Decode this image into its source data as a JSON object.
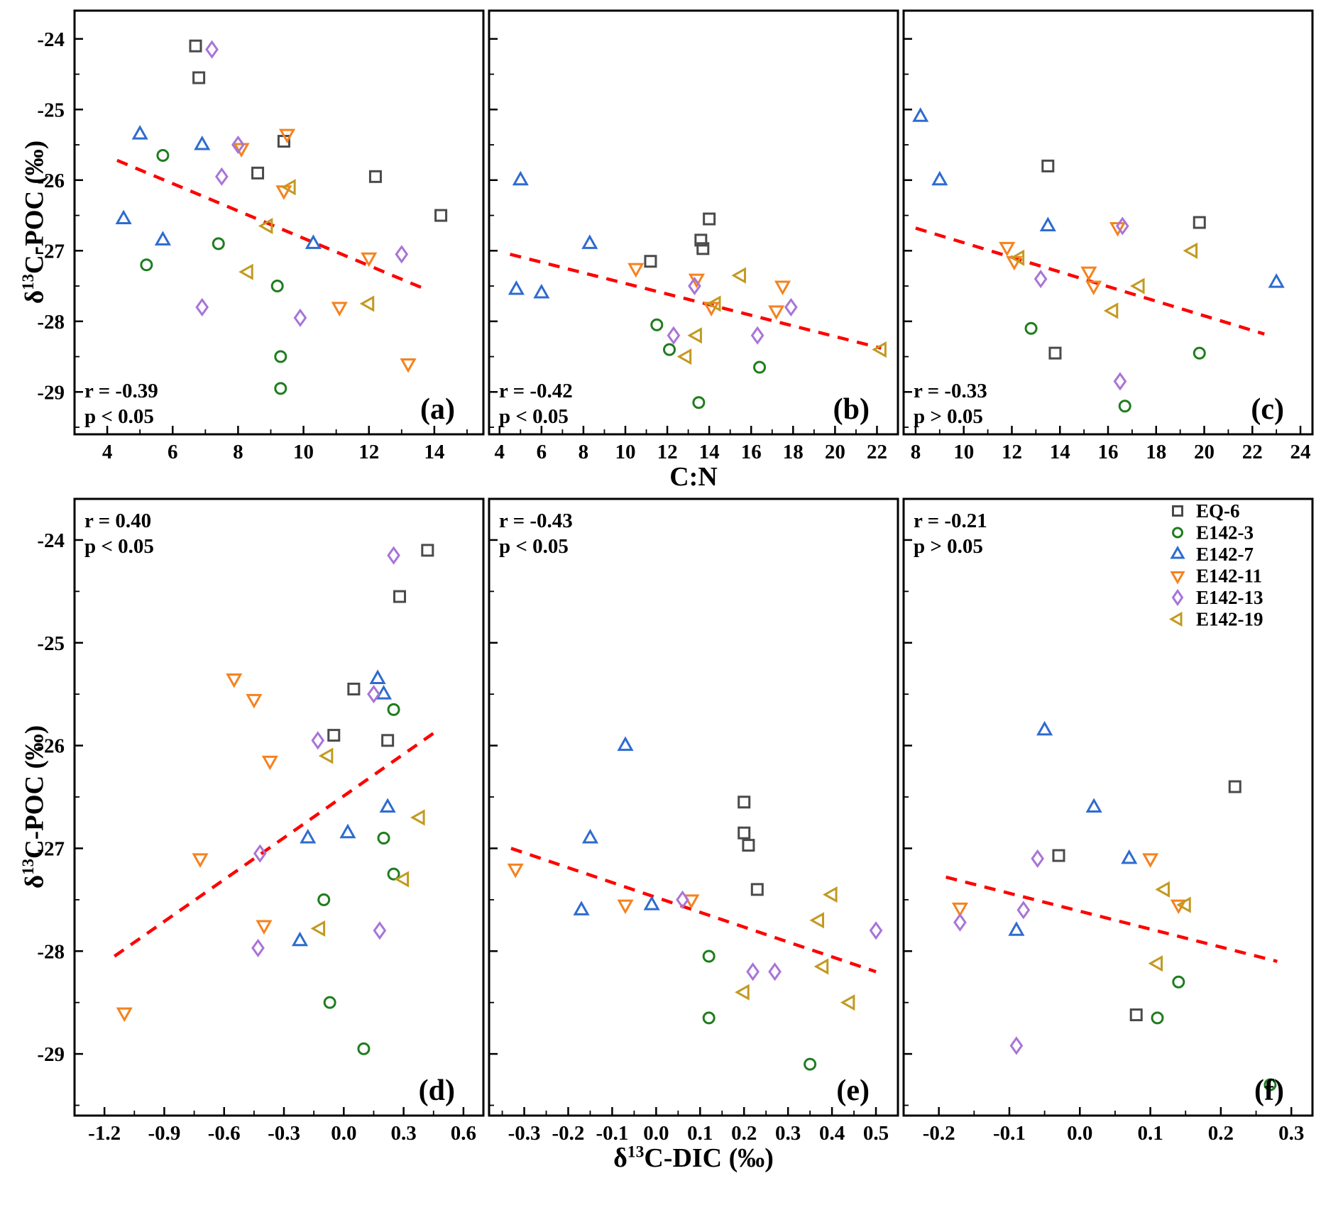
{
  "figure": {
    "background": "#ffffff",
    "axis_color": "#000000",
    "trend_color": "#ff0000"
  },
  "axes": {
    "y_label_prefix": "δ",
    "y_label_sup": "13",
    "y_label_rest": "C-POC (‰)",
    "x_label_top": "C:N",
    "x_label_bottom_prefix": "δ",
    "x_label_bottom_sup": "13",
    "x_label_bottom_rest": "C-DIC (‰)"
  },
  "series_defs": [
    {
      "key": "EQ-6",
      "label": "EQ-6",
      "color": "#4a4a4a",
      "marker": "square"
    },
    {
      "key": "E142-3",
      "label": "E142-3",
      "color": "#1e7d1e",
      "marker": "circle"
    },
    {
      "key": "E142-7",
      "label": "E142-7",
      "color": "#2e6bd0",
      "marker": "triangle-up"
    },
    {
      "key": "E142-11",
      "label": "E142-11",
      "color": "#f5821e",
      "marker": "triangle-down"
    },
    {
      "key": "E142-13",
      "label": "E142-13",
      "color": "#a874d8",
      "marker": "diamond"
    },
    {
      "key": "E142-19",
      "label": "E142-19",
      "color": "#c29a20",
      "marker": "triangle-left"
    }
  ],
  "chart_data": [
    {
      "id": "a",
      "panel_label": "(a)",
      "type": "scatter",
      "row": 0,
      "col": 0,
      "xlabel": "C:N",
      "ylabel": "δ13C-POC (‰)",
      "stats": {
        "r": "r = -0.39",
        "p": "p < 0.05",
        "corner": "bottom-left"
      },
      "xlim": [
        3,
        15.5
      ],
      "xticks": {
        "values": [
          4,
          6,
          8,
          10,
          12,
          14
        ],
        "labels": [
          "4",
          "6",
          "8",
          "10",
          "12",
          "14"
        ],
        "minor_step": 1
      },
      "ylim": [
        -29.6,
        -23.6
      ],
      "yticks": {
        "values": [
          -24,
          -25,
          -26,
          -27,
          -28,
          -29
        ],
        "labels": [
          "-24",
          "-25",
          "-26",
          "-27",
          "-28",
          "-29"
        ],
        "minor_step": 0.5
      },
      "trend": [
        [
          4.3,
          -25.72
        ],
        [
          13.6,
          -27.52
        ]
      ],
      "points": {
        "EQ-6": [
          [
            6.7,
            -24.1
          ],
          [
            6.8,
            -24.55
          ],
          [
            9.4,
            -25.45
          ],
          [
            8.6,
            -25.9
          ],
          [
            12.2,
            -25.95
          ],
          [
            14.2,
            -26.5
          ]
        ],
        "E142-3": [
          [
            5.7,
            -25.65
          ],
          [
            7.4,
            -26.9
          ],
          [
            5.2,
            -27.2
          ],
          [
            9.2,
            -27.5
          ],
          [
            9.3,
            -28.5
          ],
          [
            9.3,
            -28.95
          ]
        ],
        "E142-7": [
          [
            5.0,
            -25.35
          ],
          [
            6.9,
            -25.5
          ],
          [
            4.5,
            -26.55
          ],
          [
            5.7,
            -26.85
          ],
          [
            10.3,
            -26.9
          ]
        ],
        "E142-11": [
          [
            9.5,
            -25.35
          ],
          [
            8.1,
            -25.55
          ],
          [
            9.4,
            -26.15
          ],
          [
            12.0,
            -27.1
          ],
          [
            11.1,
            -27.8
          ],
          [
            13.2,
            -28.6
          ]
        ],
        "E142-13": [
          [
            7.2,
            -24.15
          ],
          [
            8.0,
            -25.5
          ],
          [
            7.5,
            -25.95
          ],
          [
            13.0,
            -27.05
          ],
          [
            6.9,
            -27.8
          ],
          [
            9.9,
            -27.95
          ]
        ],
        "E142-19": [
          [
            9.6,
            -26.1
          ],
          [
            8.9,
            -26.65
          ],
          [
            8.3,
            -27.3
          ],
          [
            12.0,
            -27.75
          ]
        ]
      }
    },
    {
      "id": "b",
      "panel_label": "(b)",
      "type": "scatter",
      "row": 0,
      "col": 1,
      "xlabel": "C:N",
      "ylabel": "δ13C-POC (‰)",
      "stats": {
        "r": "r = -0.42",
        "p": "p < 0.05",
        "corner": "bottom-left"
      },
      "xlim": [
        3.5,
        23
      ],
      "xticks": {
        "values": [
          4,
          6,
          8,
          10,
          12,
          14,
          16,
          18,
          20,
          22
        ],
        "labels": [
          "4",
          "6",
          "8",
          "10",
          "12",
          "14",
          "16",
          "18",
          "20",
          "22"
        ],
        "minor_step": 1
      },
      "ylim": [
        -29.6,
        -23.6
      ],
      "yticks": {
        "values": [
          -24,
          -25,
          -26,
          -27,
          -28,
          -29
        ],
        "labels": [
          "-24",
          "-25",
          "-26",
          "-27",
          "-28",
          "-29"
        ],
        "minor_step": 0.5
      },
      "trend": [
        [
          4.5,
          -27.05
        ],
        [
          22.2,
          -28.38
        ]
      ],
      "points": {
        "EQ-6": [
          [
            14.0,
            -26.55
          ],
          [
            13.6,
            -26.85
          ],
          [
            13.7,
            -26.97
          ],
          [
            11.2,
            -27.15
          ]
        ],
        "E142-3": [
          [
            11.5,
            -28.05
          ],
          [
            12.1,
            -28.4
          ],
          [
            16.4,
            -28.65
          ],
          [
            13.5,
            -29.15
          ]
        ],
        "E142-7": [
          [
            5.0,
            -26.0
          ],
          [
            8.3,
            -26.9
          ],
          [
            4.8,
            -27.55
          ],
          [
            6.0,
            -27.6
          ]
        ],
        "E142-11": [
          [
            10.5,
            -27.25
          ],
          [
            13.4,
            -27.4
          ],
          [
            14.1,
            -27.8
          ],
          [
            17.5,
            -27.5
          ],
          [
            17.2,
            -27.85
          ]
        ],
        "E142-13": [
          [
            13.3,
            -27.5
          ],
          [
            12.3,
            -28.2
          ],
          [
            16.3,
            -28.2
          ],
          [
            17.9,
            -27.8
          ]
        ],
        "E142-19": [
          [
            15.5,
            -27.35
          ],
          [
            14.3,
            -27.75
          ],
          [
            13.4,
            -28.2
          ],
          [
            12.9,
            -28.5
          ],
          [
            22.2,
            -28.4
          ]
        ]
      }
    },
    {
      "id": "c",
      "panel_label": "(c)",
      "type": "scatter",
      "row": 0,
      "col": 2,
      "xlabel": "C:N",
      "ylabel": "δ13C-POC (‰)",
      "stats": {
        "r": "r = -0.33",
        "p": "p > 0.05",
        "corner": "bottom-left"
      },
      "xlim": [
        7.5,
        24.5
      ],
      "xticks": {
        "values": [
          8,
          10,
          12,
          14,
          16,
          18,
          20,
          22,
          24
        ],
        "labels": [
          "8",
          "10",
          "12",
          "14",
          "16",
          "18",
          "20",
          "22",
          "24"
        ],
        "minor_step": 1
      },
      "ylim": [
        -29.6,
        -23.6
      ],
      "yticks": {
        "values": [
          -24,
          -25,
          -26,
          -27,
          -28,
          -29
        ],
        "labels": [
          "-24",
          "-25",
          "-26",
          "-27",
          "-28",
          "-29"
        ],
        "minor_step": 0.5
      },
      "trend": [
        [
          8.0,
          -26.68
        ],
        [
          22.5,
          -28.18
        ]
      ],
      "points": {
        "EQ-6": [
          [
            13.5,
            -25.8
          ],
          [
            19.8,
            -26.6
          ],
          [
            13.8,
            -28.45
          ]
        ],
        "E142-3": [
          [
            12.8,
            -28.1
          ],
          [
            19.8,
            -28.45
          ],
          [
            16.7,
            -29.2
          ]
        ],
        "E142-7": [
          [
            8.2,
            -25.1
          ],
          [
            9.0,
            -26.0
          ],
          [
            13.5,
            -26.65
          ],
          [
            23.0,
            -27.45
          ]
        ],
        "E142-11": [
          [
            11.8,
            -26.95
          ],
          [
            16.4,
            -26.67
          ],
          [
            12.1,
            -27.15
          ],
          [
            15.2,
            -27.3
          ],
          [
            15.4,
            -27.5
          ]
        ],
        "E142-13": [
          [
            16.6,
            -26.65
          ],
          [
            13.2,
            -27.4
          ],
          [
            16.5,
            -28.85
          ]
        ],
        "E142-19": [
          [
            12.3,
            -27.1
          ],
          [
            19.5,
            -27.0
          ],
          [
            17.3,
            -27.5
          ],
          [
            16.2,
            -27.85
          ]
        ]
      }
    },
    {
      "id": "d",
      "panel_label": "(d)",
      "type": "scatter",
      "row": 1,
      "col": 0,
      "xlabel": "δ13C-DIC (‰)",
      "ylabel": "δ13C-POC (‰)",
      "stats": {
        "r": "r = 0.40",
        "p": "p < 0.05",
        "corner": "top-left"
      },
      "xlim": [
        -1.35,
        0.7
      ],
      "xticks": {
        "values": [
          -1.2,
          -0.9,
          -0.6,
          -0.3,
          0.0,
          0.3,
          0.6
        ],
        "labels": [
          "-1.2",
          "-0.9",
          "-0.6",
          "-0.3",
          "0.0",
          "0.3",
          "0.6"
        ],
        "minor_step": 0.15
      },
      "ylim": [
        -29.6,
        -23.6
      ],
      "yticks": {
        "values": [
          -24,
          -25,
          -26,
          -27,
          -28,
          -29
        ],
        "labels": [
          "-24",
          "-25",
          "-26",
          "-27",
          "-28",
          "-29"
        ],
        "minor_step": 0.5
      },
      "trend": [
        [
          -1.15,
          -28.05
        ],
        [
          0.45,
          -25.88
        ]
      ],
      "points": {
        "EQ-6": [
          [
            0.42,
            -24.1
          ],
          [
            0.28,
            -24.55
          ],
          [
            0.05,
            -25.45
          ],
          [
            -0.05,
            -25.9
          ],
          [
            0.22,
            -25.95
          ]
        ],
        "E142-3": [
          [
            0.25,
            -25.65
          ],
          [
            0.2,
            -26.9
          ],
          [
            0.25,
            -27.25
          ],
          [
            -0.1,
            -27.5
          ],
          [
            -0.07,
            -28.5
          ],
          [
            0.1,
            -28.95
          ]
        ],
        "E142-7": [
          [
            0.17,
            -25.35
          ],
          [
            0.2,
            -25.5
          ],
          [
            0.22,
            -26.6
          ],
          [
            0.02,
            -26.85
          ],
          [
            -0.18,
            -26.9
          ],
          [
            -0.22,
            -27.9
          ]
        ],
        "E142-11": [
          [
            -0.55,
            -25.35
          ],
          [
            -0.45,
            -25.55
          ],
          [
            -0.37,
            -26.15
          ],
          [
            -0.72,
            -27.1
          ],
          [
            -0.4,
            -27.75
          ],
          [
            -1.1,
            -28.6
          ]
        ],
        "E142-13": [
          [
            0.25,
            -24.15
          ],
          [
            0.15,
            -25.5
          ],
          [
            -0.13,
            -25.95
          ],
          [
            -0.42,
            -27.05
          ],
          [
            0.18,
            -27.8
          ],
          [
            -0.43,
            -27.97
          ]
        ],
        "E142-19": [
          [
            -0.08,
            -26.1
          ],
          [
            0.38,
            -26.7
          ],
          [
            0.3,
            -27.3
          ],
          [
            -0.12,
            -27.78
          ]
        ]
      }
    },
    {
      "id": "e",
      "panel_label": "(e)",
      "type": "scatter",
      "row": 1,
      "col": 1,
      "xlabel": "δ13C-DIC (‰)",
      "ylabel": "δ13C-POC (‰)",
      "stats": {
        "r": "r = -0.43",
        "p": "p < 0.05",
        "corner": "top-left"
      },
      "xlim": [
        -0.38,
        0.55
      ],
      "xticks": {
        "values": [
          -0.3,
          -0.2,
          -0.1,
          0.0,
          0.1,
          0.2,
          0.3,
          0.4,
          0.5
        ],
        "labels": [
          "-0.3",
          "-0.2",
          "-0.1",
          "0.0",
          "0.1",
          "0.2",
          "0.3",
          "0.4",
          "0.5"
        ],
        "minor_step": 0.05
      },
      "ylim": [
        -29.6,
        -23.6
      ],
      "yticks": {
        "values": [
          -24,
          -25,
          -26,
          -27,
          -28,
          -29
        ],
        "labels": [
          "-24",
          "-25",
          "-26",
          "-27",
          "-28",
          "-29"
        ],
        "minor_step": 0.5
      },
      "trend": [
        [
          -0.33,
          -27.0
        ],
        [
          0.5,
          -28.2
        ]
      ],
      "points": {
        "EQ-6": [
          [
            0.2,
            -26.55
          ],
          [
            0.2,
            -26.85
          ],
          [
            0.21,
            -26.97
          ],
          [
            0.23,
            -27.4
          ]
        ],
        "E142-3": [
          [
            0.12,
            -28.05
          ],
          [
            0.12,
            -28.65
          ],
          [
            0.35,
            -29.1
          ]
        ],
        "E142-7": [
          [
            -0.07,
            -26.0
          ],
          [
            -0.15,
            -26.9
          ],
          [
            -0.17,
            -27.6
          ],
          [
            -0.01,
            -27.55
          ]
        ],
        "E142-11": [
          [
            -0.32,
            -27.2
          ],
          [
            -0.07,
            -27.55
          ],
          [
            0.08,
            -27.5
          ]
        ],
        "E142-13": [
          [
            0.06,
            -27.5
          ],
          [
            0.22,
            -28.2
          ],
          [
            0.27,
            -28.2
          ],
          [
            0.5,
            -27.8
          ]
        ],
        "E142-19": [
          [
            0.4,
            -27.45
          ],
          [
            0.37,
            -27.7
          ],
          [
            0.38,
            -28.15
          ],
          [
            0.2,
            -28.4
          ],
          [
            0.44,
            -28.5
          ]
        ]
      }
    },
    {
      "id": "f",
      "panel_label": "(f)",
      "type": "scatter",
      "row": 1,
      "col": 2,
      "xlabel": "δ13C-DIC (‰)",
      "ylabel": "δ13C-POC (‰)",
      "stats": {
        "r": "r = -0.21",
        "p": "p > 0.05",
        "corner": "top-left"
      },
      "xlim": [
        -0.25,
        0.33
      ],
      "xticks": {
        "values": [
          -0.2,
          -0.1,
          0.0,
          0.1,
          0.2,
          0.3
        ],
        "labels": [
          "-0.2",
          "-0.1",
          "0.0",
          "0.1",
          "0.2",
          "0.3"
        ],
        "minor_step": 0.05
      },
      "ylim": [
        -29.6,
        -23.6
      ],
      "yticks": {
        "values": [
          -24,
          -25,
          -26,
          -27,
          -28,
          -29
        ],
        "labels": [
          "-24",
          "-25",
          "-26",
          "-27",
          "-28",
          "-29"
        ],
        "minor_step": 0.5
      },
      "trend": [
        [
          -0.19,
          -27.28
        ],
        [
          0.28,
          -28.1
        ]
      ],
      "points": {
        "EQ-6": [
          [
            0.22,
            -26.4
          ],
          [
            -0.03,
            -27.07
          ],
          [
            0.08,
            -28.62
          ]
        ],
        "E142-3": [
          [
            0.14,
            -28.3
          ],
          [
            0.11,
            -28.65
          ],
          [
            0.27,
            -29.3
          ]
        ],
        "E142-7": [
          [
            -0.05,
            -25.85
          ],
          [
            0.02,
            -26.6
          ],
          [
            0.07,
            -27.1
          ],
          [
            -0.09,
            -27.8
          ]
        ],
        "E142-11": [
          [
            0.1,
            -27.1
          ],
          [
            -0.17,
            -27.58
          ],
          [
            0.14,
            -27.55
          ]
        ],
        "E142-13": [
          [
            -0.06,
            -27.1
          ],
          [
            -0.08,
            -27.6
          ],
          [
            -0.17,
            -27.72
          ],
          [
            -0.09,
            -28.92
          ]
        ],
        "E142-19": [
          [
            0.12,
            -27.4
          ],
          [
            0.15,
            -27.55
          ],
          [
            0.11,
            -28.12
          ]
        ]
      }
    }
  ]
}
